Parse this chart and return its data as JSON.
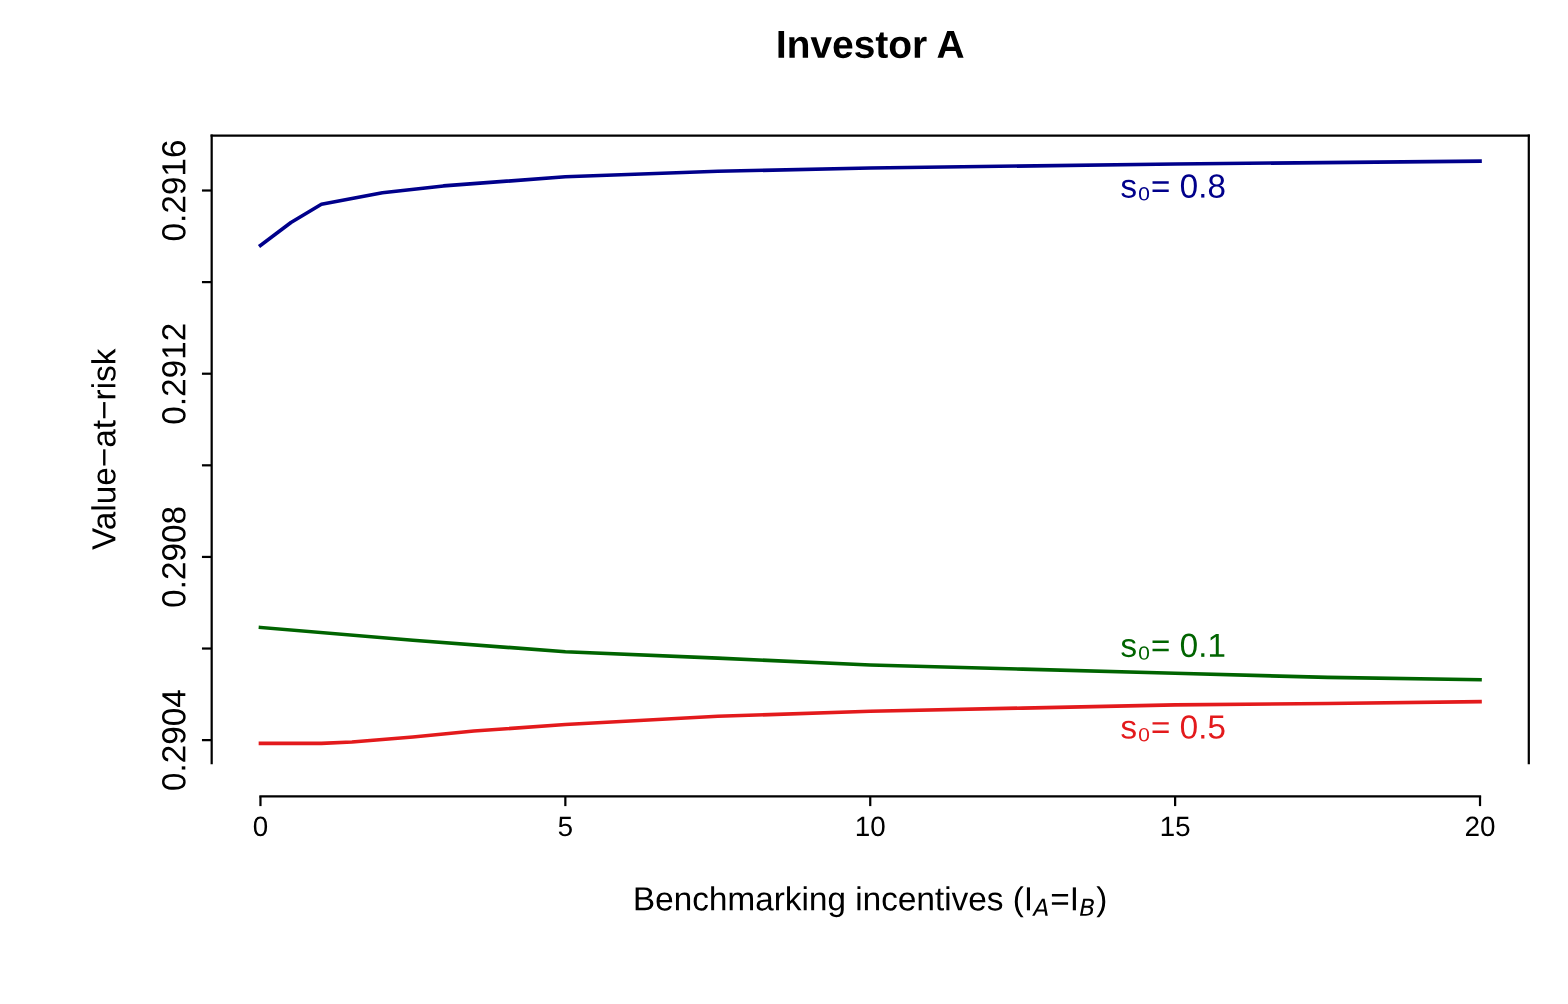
{
  "chart_data": {
    "type": "line",
    "title": "Investor A",
    "xlabel": "Benchmarking incentives (I$_{A}$=I$_{B}$)",
    "ylabel": "Value−at−risk",
    "series": [
      {
        "name": "s₀= 0.8",
        "color": "#00008b",
        "x": [
          0,
          0.5,
          1,
          2,
          3,
          5,
          7.5,
          10,
          15,
          20
        ],
        "values": [
          0.29148,
          0.29153,
          0.29157,
          0.291595,
          0.29161,
          0.29163,
          0.291642,
          0.291649,
          0.291658,
          0.291664
        ]
      },
      {
        "name": "s₀= 0.1",
        "color": "#006400",
        "x": [
          0,
          2.5,
          5,
          7.5,
          10,
          12.5,
          15,
          17.5,
          20
        ],
        "values": [
          0.290646,
          0.290618,
          0.290593,
          0.290579,
          0.290564,
          0.290555,
          0.290546,
          0.290537,
          0.290532
        ]
      },
      {
        "name": "s₀= 0.5",
        "color": "#e31a1c",
        "x": [
          0,
          1,
          1.5,
          2.5,
          3.5,
          5,
          7.5,
          10,
          12.5,
          15,
          17.5,
          20
        ],
        "values": [
          0.290393,
          0.290393,
          0.290396,
          0.290407,
          0.29042,
          0.290434,
          0.290452,
          0.290463,
          0.29047,
          0.290477,
          0.29048,
          0.290484
        ]
      }
    ],
    "xlim": [
      -0.8,
      20.8
    ],
    "xticks": [
      0,
      5,
      10,
      15,
      20
    ],
    "ylim": [
      0.29035,
      0.29172
    ],
    "yticks": [
      {
        "value": 0.2904,
        "label": "0.2904"
      },
      {
        "value": 0.2906,
        "label": null
      },
      {
        "value": 0.2908,
        "label": "0.2908"
      },
      {
        "value": 0.291,
        "label": null
      },
      {
        "value": 0.2912,
        "label": "0.2912"
      },
      {
        "value": 0.2914,
        "label": null
      },
      {
        "value": 0.2916,
        "label": "0.2916"
      }
    ],
    "grid": false,
    "legend": false,
    "line_style": "solid",
    "marker": "none"
  }
}
